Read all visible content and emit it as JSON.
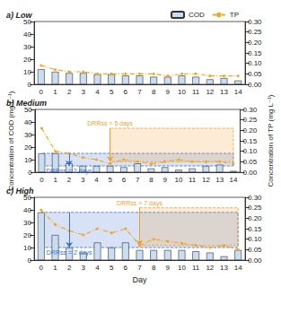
{
  "chart_data": [
    {
      "type": "bar",
      "title": "a) Low",
      "legend": "upper right",
      "grid": false,
      "categories": [
        0,
        1,
        2,
        3,
        4,
        5,
        6,
        7,
        8,
        9,
        10,
        11,
        12,
        13,
        14
      ],
      "ylim": [
        0,
        50
      ],
      "yticks": [
        0,
        10,
        20,
        30,
        40,
        50
      ],
      "y2lim": [
        0,
        0.3
      ],
      "y2ticks": [
        {
          "value": 0,
          "label": "0.00"
        },
        {
          "value": 0.05,
          "label": "0.05"
        },
        {
          "value": 0.1,
          "label": "0.10"
        },
        {
          "value": 0.15,
          "label": "0.15"
        },
        {
          "value": 0.2,
          "label": "0.20"
        },
        {
          "value": 0.25,
          "label": "0.25"
        },
        {
          "value": 0.3,
          "label": "0.30"
        }
      ],
      "series": [
        {
          "name": "COD",
          "type": "bar",
          "color": "#c9def2",
          "values": [
            12,
            10,
            9,
            9,
            8,
            8,
            7,
            7,
            6,
            6,
            7,
            6,
            4,
            5,
            3
          ]
        },
        {
          "name": "TP",
          "type": "line",
          "axis": "y2",
          "color": "#f5a623",
          "marker": "circle",
          "line_style": "dashdot",
          "values": [
            0.09,
            0.07,
            0.06,
            0.06,
            0.05,
            0.05,
            0.05,
            0.05,
            0.05,
            0.04,
            0.05,
            0.05,
            0.04,
            0.04,
            0.04
          ]
        }
      ],
      "annotations": []
    },
    {
      "type": "bar",
      "title": "b) Medium",
      "grid": false,
      "ylabel": "Concentration of COD (mg L⁻¹)",
      "y2label": "Concentration of TP (mg L⁻¹)",
      "categories": [
        0,
        1,
        2,
        3,
        4,
        5,
        6,
        7,
        8,
        9,
        10,
        11,
        12,
        13,
        14
      ],
      "ylim": [
        0,
        50
      ],
      "yticks": [
        0,
        10,
        20,
        30,
        40,
        50
      ],
      "y2lim": [
        0,
        0.3
      ],
      "y2ticks": [
        {
          "value": 0,
          "label": "0.00"
        },
        {
          "value": 0.05,
          "label": "0.05"
        },
        {
          "value": 0.1,
          "label": "0.10"
        },
        {
          "value": 0.15,
          "label": "0.15"
        },
        {
          "value": 0.2,
          "label": "0.20"
        },
        {
          "value": 0.25,
          "label": "0.25"
        },
        {
          "value": 0.3,
          "label": "0.30"
        }
      ],
      "series": [
        {
          "name": "COD",
          "type": "bar",
          "color": "#c9def2",
          "values": [
            15,
            15,
            7,
            5,
            5,
            5,
            4,
            7,
            3,
            4,
            2,
            3,
            5,
            6,
            1
          ]
        },
        {
          "name": "TP",
          "type": "line",
          "axis": "y2",
          "color": "#f5a623",
          "marker": "circle",
          "line_style": "dashdot",
          "values": [
            0.21,
            0.1,
            0.09,
            0.07,
            0.06,
            0.04,
            0.06,
            0.05,
            0.04,
            0.05,
            0.06,
            0.05,
            0.05,
            0.05,
            0.04
          ]
        }
      ],
      "annotations": [
        {
          "label": "DRRss = 2 days",
          "axis": "y",
          "x": [
            0,
            14
          ],
          "y": [
            15,
            5
          ],
          "arrow_day": 2,
          "color": "#3b6fd1"
        },
        {
          "label": "DRRss = 5 days",
          "axis": "y2",
          "x": [
            5,
            14
          ],
          "y": [
            0.21,
            0.05
          ],
          "arrow_day": 5,
          "color": "#f0a030"
        }
      ]
    },
    {
      "type": "bar",
      "title": "c) High",
      "grid": false,
      "xlabel": "Day",
      "categories": [
        0,
        1,
        2,
        3,
        4,
        5,
        6,
        7,
        8,
        9,
        10,
        11,
        12,
        13,
        14
      ],
      "ylim": [
        0,
        50
      ],
      "yticks": [
        0,
        10,
        20,
        30,
        40,
        50
      ],
      "y2lim": [
        0,
        0.3
      ],
      "y2ticks": [
        {
          "value": 0,
          "label": "0.00"
        },
        {
          "value": 0.05,
          "label": "0.05"
        },
        {
          "value": 0.1,
          "label": "0.10"
        },
        {
          "value": 0.15,
          "label": "0.15"
        },
        {
          "value": 0.2,
          "label": "0.20"
        },
        {
          "value": 0.25,
          "label": "0.25"
        },
        {
          "value": 0.3,
          "label": "0.30"
        }
      ],
      "series": [
        {
          "name": "COD",
          "type": "bar",
          "color": "#c9def2",
          "values": [
            38,
            20,
            10,
            6,
            14,
            10,
            14,
            8,
            8,
            8,
            8,
            7,
            6,
            3,
            8
          ]
        },
        {
          "name": "TP",
          "type": "line",
          "axis": "y2",
          "color": "#f5a623",
          "marker": "circle",
          "line_style": "dashdot",
          "values": [
            0.24,
            0.17,
            0.14,
            0.12,
            0.15,
            0.13,
            0.15,
            0.07,
            0.1,
            0.09,
            0.08,
            0.07,
            0.06,
            0.07,
            0.05
          ]
        }
      ],
      "annotations": [
        {
          "label": "DRRss = 2 days",
          "axis": "y",
          "x": [
            0,
            14
          ],
          "y": [
            38,
            10
          ],
          "arrow_day": 2,
          "color": "#3b6fd1"
        },
        {
          "label": "DRRss = 7 days",
          "axis": "y2",
          "x": [
            7,
            14
          ],
          "y": [
            0.25,
            0.07
          ],
          "arrow_day": 7,
          "color": "#f0a030"
        }
      ]
    }
  ]
}
